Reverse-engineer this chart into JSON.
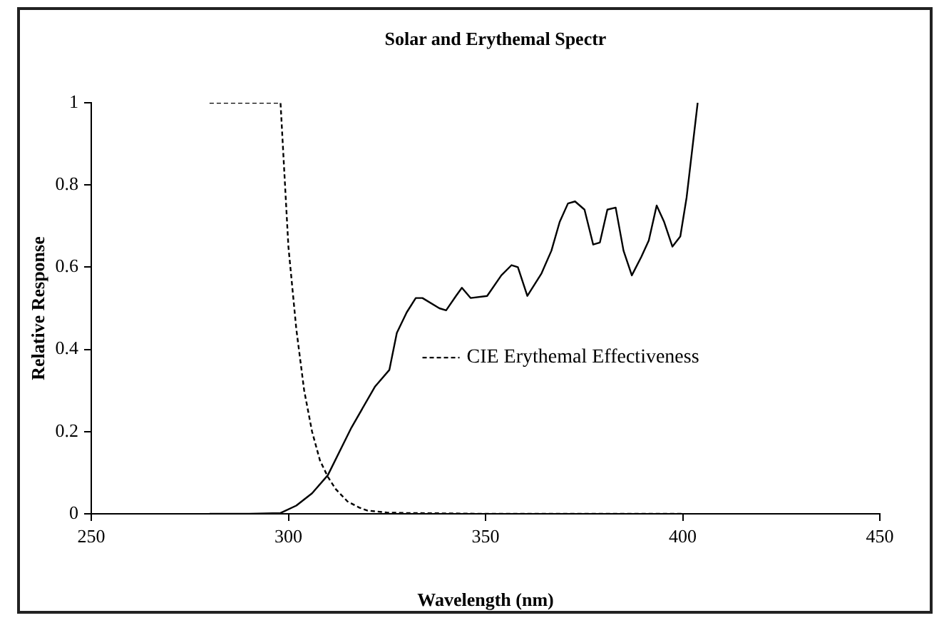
{
  "chart_data": {
    "type": "line",
    "title": "Solar and Erythemal Spectr",
    "xlabel": "Wavelength (nm)",
    "ylabel": "Relative Response",
    "xlim": [
      250,
      450
    ],
    "xticks": [
      250,
      300,
      350,
      400,
      450
    ],
    "ylim": [
      0,
      1
    ],
    "yticks": [
      0,
      0.2,
      0.4,
      0.6,
      0.8,
      1
    ],
    "grid": false,
    "legend": "center",
    "marker": "none",
    "series": [
      {
        "type": "line",
        "color": "#000000",
        "line_style": "solid",
        "x": [
          280,
          290,
          298,
          302,
          306,
          310,
          316,
          322,
          325.6,
          327.5,
          330,
          332.3,
          334,
          338.3,
          340,
          342.5,
          344,
          346.2,
          350.4,
          354,
          356.6,
          358.2,
          360.6,
          364.2,
          366.7,
          368.8,
          370.9,
          372.7,
          375.1,
          377.3,
          379,
          380.9,
          383,
          385,
          387.1,
          389.5,
          391.4,
          393.4,
          395.3,
          397.4,
          399.4,
          401,
          403.8
        ],
        "values": [
          0,
          0,
          0.002,
          0.02,
          0.05,
          0.094,
          0.21,
          0.31,
          0.35,
          0.44,
          0.49,
          0.525,
          0.525,
          0.5,
          0.495,
          0.53,
          0.55,
          0.525,
          0.53,
          0.58,
          0.605,
          0.6,
          0.53,
          0.585,
          0.64,
          0.71,
          0.755,
          0.76,
          0.74,
          0.655,
          0.66,
          0.74,
          0.745,
          0.64,
          0.58,
          0.625,
          0.665,
          0.75,
          0.71,
          0.65,
          0.675,
          0.77,
          1
        ]
      },
      {
        "type": "line",
        "name": "CIE Erythemal Effectiveness",
        "color": "#000000",
        "line_style": "dashed",
        "x": [
          280,
          290,
          298,
          300,
          302,
          304,
          306,
          308,
          310,
          312,
          315,
          318,
          320,
          325,
          330,
          340,
          350,
          375,
          400
        ],
        "values": [
          1,
          1,
          1,
          0.65,
          0.45,
          0.3,
          0.2,
          0.13,
          0.09,
          0.06,
          0.03,
          0.015,
          0.008,
          0.003,
          0.002,
          0.001,
          0,
          0,
          0
        ]
      }
    ]
  }
}
